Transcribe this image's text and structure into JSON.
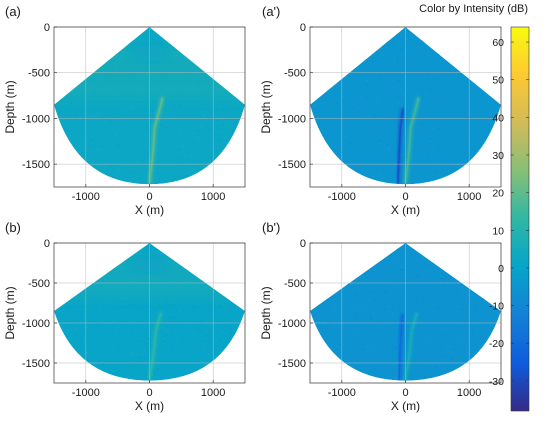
{
  "chart_data": [
    {
      "type": "heatmap",
      "panel_label": "(a)",
      "xlabel": "X (m)",
      "ylabel": "Depth (m)",
      "xlim": [
        -1500,
        1500
      ],
      "ylim": [
        -1750,
        0
      ],
      "xticks": [
        -1000,
        0,
        1000
      ],
      "yticks": [
        0,
        -500,
        -1000,
        -1500
      ],
      "xtick_labels": [
        "-1000",
        "0",
        "1000"
      ],
      "ytick_labels": [
        "0",
        "-500",
        "-1000",
        "-1500"
      ],
      "grid": true,
      "features": [
        {
          "name": "background",
          "intensity_db": 2
        },
        {
          "name": "bright-near-field-band",
          "depth_range": [
            -200,
            -800
          ],
          "intensity_db": 8
        },
        {
          "name": "target-track-main",
          "points": [
            [
              0,
              -1700
            ],
            [
              50,
              -1400
            ],
            [
              80,
              -1100
            ],
            [
              120,
              -1000
            ],
            [
              180,
              -850
            ],
            [
              200,
              -780
            ]
          ],
          "intensity_db": 20
        }
      ]
    },
    {
      "type": "heatmap",
      "panel_label": "(a')",
      "xlabel": "X (m)",
      "ylabel": "Depth (m)",
      "xlim": [
        -1500,
        1500
      ],
      "ylim": [
        -1750,
        0
      ],
      "xticks": [
        -1000,
        0,
        1000
      ],
      "yticks": [
        0,
        -500,
        -1000,
        -1500
      ],
      "xtick_labels": [
        "-1000",
        "0",
        "1000"
      ],
      "ytick_labels": [
        "0",
        "-500",
        "-1000",
        "-1500"
      ],
      "grid": true,
      "features": [
        {
          "name": "background",
          "intensity_db": -5
        },
        {
          "name": "target-track-main",
          "points": [
            [
              0,
              -1700
            ],
            [
              50,
              -1400
            ],
            [
              80,
              -1100
            ],
            [
              120,
              -1000
            ],
            [
              180,
              -850
            ],
            [
              200,
              -780
            ]
          ],
          "intensity_db": 15
        },
        {
          "name": "ghost-track",
          "points": [
            [
              -120,
              -1700
            ],
            [
              -100,
              -1400
            ],
            [
              -80,
              -1100
            ],
            [
              -60,
              -1000
            ],
            [
              -40,
              -900
            ]
          ],
          "intensity_db": -28
        }
      ]
    },
    {
      "type": "heatmap",
      "panel_label": "(b)",
      "xlabel": "X (m)",
      "ylabel": "Depth (m)",
      "xlim": [
        -1500,
        1500
      ],
      "ylim": [
        -1750,
        0
      ],
      "xticks": [
        -1000,
        0,
        1000
      ],
      "yticks": [
        0,
        -500,
        -1000,
        -1500
      ],
      "xtick_labels": [
        "-1000",
        "0",
        "1000"
      ],
      "ytick_labels": [
        "0",
        "-500",
        "-1000",
        "-1500"
      ],
      "grid": true,
      "features": [
        {
          "name": "background",
          "intensity_db": 1
        },
        {
          "name": "bright-near-field-band",
          "depth_range": [
            -150,
            -700
          ],
          "intensity_db": 7
        },
        {
          "name": "target-track-main",
          "points": [
            [
              0,
              -1700
            ],
            [
              60,
              -1400
            ],
            [
              100,
              -1100
            ],
            [
              150,
              -950
            ],
            [
              180,
              -880
            ]
          ],
          "intensity_db": 12
        }
      ]
    },
    {
      "type": "heatmap",
      "panel_label": "(b')",
      "xlabel": "X (m)",
      "ylabel": "Depth (m)",
      "xlim": [
        -1500,
        1500
      ],
      "ylim": [
        -1750,
        0
      ],
      "xticks": [
        -1000,
        0,
        1000
      ],
      "yticks": [
        0,
        -500,
        -1000,
        -1500
      ],
      "xtick_labels": [
        "-1000",
        "0",
        "1000"
      ],
      "ytick_labels": [
        "0",
        "-500",
        "-1000",
        "-1500"
      ],
      "grid": true,
      "features": [
        {
          "name": "background",
          "intensity_db": -6
        },
        {
          "name": "target-track-main",
          "points": [
            [
              0,
              -1700
            ],
            [
              60,
              -1400
            ],
            [
              100,
              -1100
            ],
            [
              150,
              -950
            ],
            [
              180,
              -880
            ]
          ],
          "intensity_db": 6
        },
        {
          "name": "ghost-track",
          "points": [
            [
              -100,
              -1700
            ],
            [
              -80,
              -1300
            ],
            [
              -60,
              -1000
            ],
            [
              -40,
              -900
            ]
          ],
          "intensity_db": -20
        }
      ]
    }
  ],
  "colorbar": {
    "title": "Color by Intensity (dB)",
    "ticks": [
      60,
      50,
      40,
      30,
      20,
      10,
      0,
      -10,
      -20,
      -30
    ],
    "tick_labels": [
      "60",
      "50",
      "40",
      "30",
      "20",
      "10",
      "0",
      "-10",
      "-20",
      "-30"
    ],
    "range": [
      -38,
      64
    ],
    "colormap": "parula",
    "colors": [
      "#352a87",
      "#0f5cdd",
      "#1481d6",
      "#06a4ca",
      "#2eb7a4",
      "#87bf77",
      "#d1bb59",
      "#fec832",
      "#f9fb0e"
    ]
  }
}
